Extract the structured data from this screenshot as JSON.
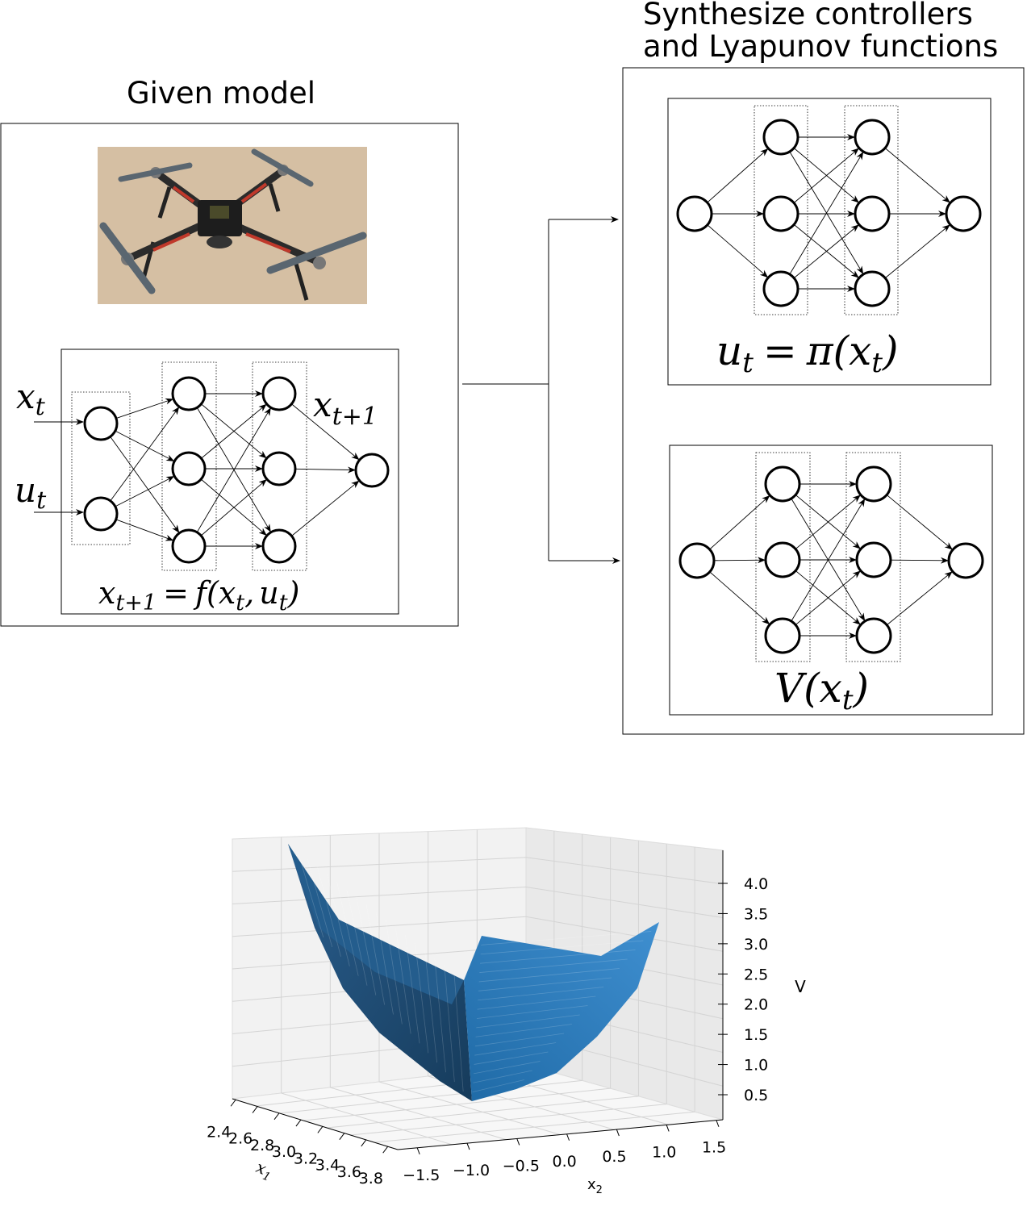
{
  "given": {
    "title": "Given model",
    "eq_left": "x",
    "eq_left_sub": "t+1",
    "eq_right_f": "f",
    "eq_right_args_open": "(",
    "eq_right_x": "x",
    "eq_right_x_sub": "t",
    "eq_comma": ",",
    "eq_right_u": "u",
    "eq_right_u_sub": "t",
    "eq_close": ")",
    "eq_equals": "=",
    "input_x": "x",
    "input_x_sub": "t",
    "input_u": "u",
    "input_u_sub": "t",
    "output_x": "x",
    "output_x_sub": "t+1",
    "photo_subject": "quadcopter-drone"
  },
  "synth": {
    "title_line1": "Synthesize controllers",
    "title_line2": "and Lyapunov functions",
    "controller_eq_u": "u",
    "controller_eq_u_sub": "t",
    "controller_eq_equals": "=",
    "controller_eq_pi": "π",
    "controller_eq_open": "(",
    "controller_eq_x": "x",
    "controller_eq_x_sub": "t",
    "controller_eq_close": ")",
    "lyapunov_eq_V": "V",
    "lyapunov_eq_open": "(",
    "lyapunov_eq_x": "x",
    "lyapunov_eq_x_sub": "t",
    "lyapunov_eq_close": ")"
  },
  "surface_plot": {
    "zlabel": "V",
    "x1_label": "x",
    "x1_label_sub": "1",
    "x2_label": "x",
    "x2_label_sub": "2",
    "surface_color": "#1f77b4",
    "z_ticks": [
      "0.5",
      "1.0",
      "1.5",
      "2.0",
      "2.5",
      "3.0",
      "3.5",
      "4.0"
    ],
    "x1_ticks": [
      "2.4",
      "2.6",
      "2.8",
      "3.0",
      "3.2",
      "3.4",
      "3.6",
      "3.8"
    ],
    "x2_ticks": [
      "−1.5",
      "−1.0",
      "−0.5",
      "0.0",
      "0.5",
      "1.0",
      "1.5"
    ]
  }
}
